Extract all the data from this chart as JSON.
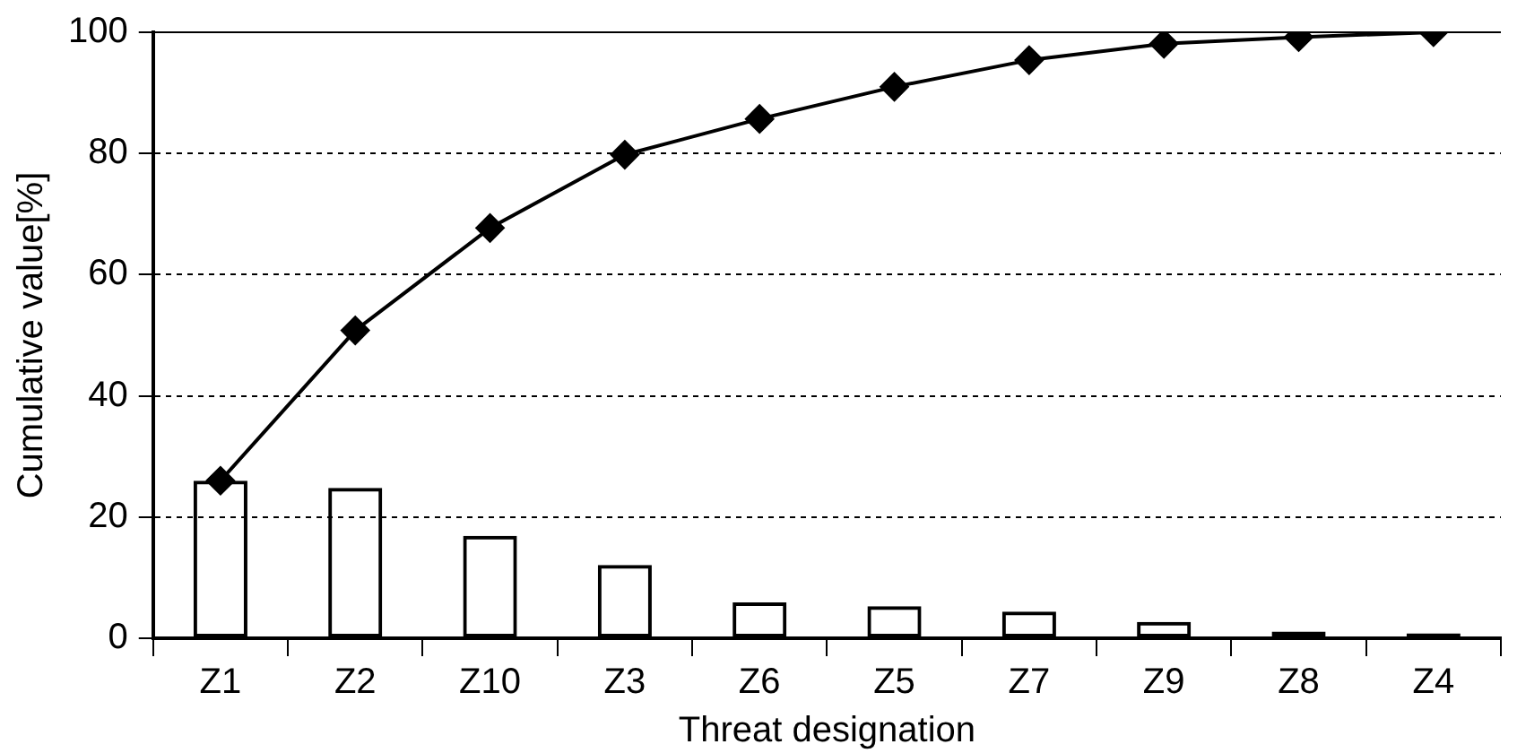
{
  "chart_data": {
    "type": "bar",
    "xlabel": "Threat designation",
    "ylabel": "Cumulative value[%]",
    "categories": [
      "Z1",
      "Z2",
      "Z10",
      "Z3",
      "Z6",
      "Z5",
      "Z7",
      "Z9",
      "Z8",
      "Z4"
    ],
    "series": [
      {
        "color": "#000000",
        "values": [
          26,
          24.8,
          16.9,
          12.1,
          5.9,
          5.3,
          4.4,
          2.7,
          1.1,
          0.8
        ]
      },
      {
        "type": "line",
        "color": "#000000",
        "marker": "diamond",
        "values": [
          26,
          50.8,
          67.7,
          79.8,
          85.7,
          91,
          95.4,
          98.1,
          99.2,
          100
        ]
      }
    ],
    "ylim": [
      0,
      100
    ],
    "yticks": [
      0,
      20,
      40,
      60,
      80,
      100
    ],
    "grid": "y",
    "legend": false
  }
}
